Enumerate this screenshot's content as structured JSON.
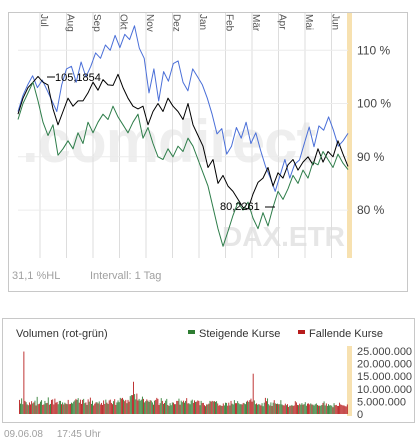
{
  "colors": {
    "upper_band": "#4a6fd8",
    "middle_line": "#000000",
    "lower_band": "#2e7d4a",
    "rising_volume": "#2e7d32",
    "falling_volume": "#b71c1c",
    "axis_highlight": "#f7e1b0",
    "watermark": "#e8e8e8",
    "watermark_accent": "#f8e2b8",
    "muted_text": "#a0a0a0",
    "grid": "#d8d8d8"
  },
  "price_chart": {
    "months": [
      "Jul",
      "Aug",
      "Sep",
      "Okt",
      "Nov",
      "Dez",
      "Jan",
      "Feb",
      "Mär",
      "Apr",
      "Mai",
      "Jun"
    ],
    "y_ticks": [
      "110 %",
      "100 %",
      "90 %",
      "80 %"
    ],
    "y_tick_values": [
      110,
      100,
      90,
      80
    ],
    "y_range": [
      71,
      117
    ],
    "watermark": ".comdirect",
    "source_watermark": "DAX.ETR",
    "annotation_high": "105,1854",
    "annotation_low": "80,2261",
    "footer_left": "31,1 %HL",
    "footer_interval": "Intervall: 1 Tag"
  },
  "volume_chart": {
    "title": "Volumen (rot-grün)",
    "legend": [
      {
        "label": "Steigende Kurse",
        "color": "#2e7d32"
      },
      {
        "label": "Fallende Kurse",
        "color": "#b71c1c"
      }
    ],
    "y_ticks": [
      "25.000.000",
      "20.000.000",
      "15.000.000",
      "10.000.000",
      "5.000.000",
      "0"
    ],
    "y_tick_values": [
      25000000,
      20000000,
      15000000,
      10000000,
      5000000,
      0
    ],
    "y_range": [
      0,
      27000000
    ]
  },
  "timestamp": "09.06.08     17:45 Uhr",
  "chart_data": [
    {
      "type": "line",
      "months": [
        "Jul",
        "Aug",
        "Sep",
        "Okt",
        "Nov",
        "Dez",
        "Jan",
        "Feb",
        "Mär",
        "Apr",
        "Mai",
        "Jun"
      ],
      "series": [
        {
          "values": [
            98.5,
            101.5,
            103.5,
            105.2,
            103.0,
            104.4,
            102.5,
            100.5,
            98.5,
            103.5,
            106.5,
            107.0,
            104.0,
            107.8,
            105.0,
            107.0,
            109.5,
            108.5,
            111.0,
            110.0,
            112.8,
            110.5,
            113.0,
            112.0,
            114.6,
            110.4,
            108.5,
            102.0,
            106.5,
            100.5,
            106.0,
            104.2,
            107.5,
            108.0,
            104.0,
            102.4,
            106.5,
            105.0,
            103.5,
            101.0,
            98.0,
            94.3,
            95.3,
            90.5,
            92.0,
            95.5,
            93.5,
            96.5,
            92.5,
            94.5,
            91.2,
            88.2,
            86.0,
            83.5,
            86.5,
            89.5,
            86.0,
            88.6,
            89.4,
            92.5,
            95.6,
            91.9,
            95.8,
            95.0,
            97.5,
            95.0,
            92.0,
            93.0,
            94.4
          ]
        },
        {
          "values": [
            98.0,
            101.0,
            103.0,
            104.0,
            105.1,
            104.0,
            103.5,
            99.0,
            96.0,
            98.5,
            101.0,
            99.5,
            100.5,
            100.5,
            102.0,
            104.0,
            102.5,
            104.5,
            103.5,
            103.4,
            105.5,
            103.0,
            101.0,
            99.5,
            99.0,
            99.5,
            96.0,
            98.5,
            100.0,
            98.5,
            101.0,
            99.5,
            98.5,
            97.0,
            100.0,
            96.0,
            94.0,
            92.0,
            88.0,
            89.5,
            85.0,
            86.5,
            84.5,
            83.5,
            82.0,
            80.5,
            80.2,
            83.0,
            85.2,
            86.0,
            88.0,
            84.5,
            87.0,
            86.0,
            88.5,
            89.5,
            87.5,
            89.0,
            90.0,
            88.5,
            91.5,
            89.0,
            91.0,
            90.0,
            93.0,
            90.5,
            88.2
          ]
        },
        {
          "values": [
            97.0,
            100.0,
            102.0,
            104.0,
            100.5,
            96.5,
            94.0,
            96.0,
            90.3,
            91.5,
            93.0,
            91.5,
            94.5,
            92.5,
            96.5,
            94.5,
            96.5,
            98.0,
            97.0,
            99.5,
            97.5,
            96.0,
            94.5,
            96.5,
            98.0,
            93.5,
            95.5,
            92.5,
            90.0,
            89.5,
            91.5,
            90.0,
            92.0,
            91.0,
            93.5,
            92.0,
            89.5,
            87.0,
            84.5,
            80.5,
            76.5,
            73.2,
            76.0,
            79.0,
            81.5,
            80.0,
            81.5,
            78.5,
            76.5,
            79.5,
            77.0,
            80.5,
            83.5,
            82.0,
            84.0,
            86.5,
            85.0,
            87.5,
            86.0,
            89.0,
            88.5,
            91.0,
            89.5,
            88.0,
            90.5,
            88.8,
            87.6
          ]
        }
      ]
    },
    {
      "type": "bar",
      "title": "Volumen (rot-grün)",
      "ylim": [
        0,
        27000000
      ],
      "values": [
        5600000,
        4100000,
        6200000,
        3900000,
        24800000,
        5200000,
        4700000,
        3800000,
        3500000,
        4600000,
        3800000,
        5100000,
        4200000,
        4600000,
        5300000,
        3400000,
        6800000,
        3900000,
        4100000,
        4900000,
        5500000,
        3600000,
        3800000,
        5200000,
        4300000,
        4400000,
        6600000,
        3700000,
        4000000,
        5600000,
        5800000,
        3800000,
        6100000,
        4500000,
        4800000,
        3900000,
        5200000,
        5200000,
        3900000,
        4600000,
        3800000,
        4500000,
        4100000,
        3900000,
        5600000,
        3900000,
        4000000,
        4500000,
        4200000,
        4900000,
        5400000,
        6000000,
        5600000,
        6300000,
        4500000,
        5700000,
        4000000,
        5600000,
        6000000,
        4300000,
        4600000,
        3600000,
        5800000,
        4900000,
        6500000,
        4000000,
        5300000,
        3400000,
        4100000,
        4600000,
        4700000,
        4200000,
        5000000,
        3800000,
        4400000,
        3600000,
        5400000,
        4000000,
        5700000,
        4500000,
        4000000,
        5400000,
        5700000,
        4400000,
        3900000,
        5100000,
        5900000,
        3600000,
        4600000,
        5400000,
        4700000,
        6400000,
        6100000,
        6400000,
        5700000,
        5100000,
        5600000,
        4300000,
        5600000,
        4900000,
        7100000,
        7500000,
        7500000,
        12800000,
        7900000,
        5800000,
        8100000,
        5400000,
        6000000,
        5300000,
        5700000,
        6900000,
        6000000,
        4600000,
        5100000,
        5800000,
        5300000,
        4800000,
        5500000,
        5300000,
        4600000,
        3700000,
        5300000,
        5600000,
        6400000,
        6000000,
        3600000,
        4300000,
        6300000,
        5200000,
        4000000,
        4400000,
        5300000,
        6000000,
        3600000,
        3200000,
        4300000,
        3500000,
        4600000,
        4500000,
        3900000,
        3900000,
        5200000,
        5200000,
        6100000,
        3700000,
        5300000,
        4700000,
        5300000,
        4500000,
        5200000,
        6300000,
        4200000,
        4300000,
        3900000,
        5300000,
        5700000,
        4400000,
        5400000,
        4800000,
        4900000,
        5400000,
        5200000,
        3500000,
        5200000,
        4400000,
        4400000,
        3500000,
        3100000,
        3800000,
        3800000,
        4100000,
        5200000,
        4900000,
        5200000,
        5000000,
        5100000,
        4800000,
        5100000,
        4200000,
        3300000,
        3600000,
        3300000,
        3200000,
        4200000,
        3400000,
        4500000,
        4400000,
        3300000,
        4500000,
        3400000,
        5200000,
        4100000,
        3800000,
        5500000,
        4300000,
        4300000,
        5100000,
        4300000,
        3900000,
        3900000,
        3800000,
        4400000,
        4200000,
        3900000,
        4900000,
        5300000,
        4800000,
        5500000,
        6100000,
        4900000,
        16000000,
        5400000,
        3900000,
        4200000,
        3700000,
        3900000,
        3800000,
        3400000,
        4300000,
        3100000,
        4500000,
        6400000,
        5100000,
        6200000,
        3900000,
        3400000,
        4600000,
        3200000,
        4500000,
        5500000,
        4200000,
        4000000,
        4100000,
        3900000,
        3900000,
        5500000,
        3800000,
        3500000,
        3400000,
        4100000,
        3500000,
        3900000,
        2800000,
        3300000,
        3300000,
        3600000,
        3200000,
        3400000,
        5100000,
        4600000,
        3600000,
        3500000,
        4100000,
        3700000,
        4300000,
        3700000,
        3900000,
        4700000,
        3300000,
        4100000,
        4200000,
        3800000,
        4200000,
        3800000,
        3700000,
        3400000,
        3900000,
        4200000,
        3600000,
        3300000,
        3300000,
        3300000,
        3600000,
        4400000,
        5000000,
        3400000,
        4200000,
        3200000,
        3900000,
        3400000,
        3500000,
        3300000,
        2700000,
        4300000,
        3500000,
        3600000,
        3200000,
        3200000,
        4500000,
        3800000,
        3600000,
        3400000,
        3400000,
        3100000,
        3000000,
        3800000
      ],
      "directions": [
        "down",
        "up",
        "up",
        "up",
        "down",
        "down",
        "up",
        "down",
        "up",
        "down",
        "down",
        "down",
        "up",
        "down",
        "up",
        "down",
        "up",
        "down",
        "down",
        "up",
        "up",
        "down",
        "down",
        "up",
        "up",
        "down",
        "up",
        "down",
        "up",
        "down",
        "down",
        "down",
        "down",
        "down",
        "down",
        "up",
        "up",
        "up",
        "down",
        "up",
        "down",
        "up",
        "down",
        "up",
        "down",
        "down",
        "down",
        "up",
        "up",
        "up",
        "up",
        "down",
        "up",
        "up",
        "down",
        "down",
        "down",
        "down",
        "up",
        "up",
        "down",
        "up",
        "down",
        "up",
        "down",
        "up",
        "up",
        "down",
        "down",
        "down",
        "up",
        "down",
        "up",
        "down",
        "down",
        "down",
        "down",
        "down",
        "up",
        "down",
        "up",
        "down",
        "down",
        "down",
        "down",
        "up",
        "down",
        "down",
        "up",
        "up",
        "up",
        "up",
        "down",
        "down",
        "up",
        "down",
        "down",
        "up",
        "down",
        "down",
        "up",
        "up",
        "down",
        "down",
        "up",
        "up",
        "down",
        "down",
        "up",
        "up",
        "up",
        "up",
        "down",
        "up",
        "up",
        "down",
        "up",
        "up",
        "down",
        "up",
        "up",
        "down",
        "up",
        "down",
        "down",
        "down",
        "down",
        "up",
        "up",
        "down",
        "up",
        "down",
        "up",
        "up",
        "down",
        "up",
        "up",
        "up",
        "up",
        "down",
        "down",
        "up",
        "down",
        "down",
        "up",
        "down",
        "up",
        "up",
        "down",
        "up",
        "up",
        "down",
        "down",
        "up",
        "up",
        "up",
        "up",
        "down",
        "down",
        "up",
        "down",
        "down",
        "down",
        "up",
        "up",
        "down",
        "down",
        "down",
        "up",
        "down",
        "up",
        "down",
        "up",
        "down",
        "down",
        "up",
        "down",
        "up",
        "up",
        "down",
        "down",
        "down",
        "up",
        "down",
        "down",
        "up",
        "up",
        "up",
        "down",
        "down",
        "up",
        "down",
        "up",
        "up",
        "up",
        "down",
        "down",
        "up",
        "up",
        "up",
        "up",
        "down",
        "down",
        "up",
        "up",
        "up",
        "down",
        "up",
        "down",
        "down",
        "down",
        "down",
        "up",
        "up",
        "down",
        "up",
        "up",
        "down",
        "down",
        "up",
        "up",
        "up",
        "down",
        "down",
        "up",
        "up",
        "down",
        "up",
        "down",
        "up",
        "down",
        "up",
        "down",
        "up",
        "down",
        "up",
        "up",
        "up",
        "down",
        "down",
        "down",
        "up",
        "down",
        "down",
        "up",
        "down",
        "up",
        "down",
        "down",
        "down",
        "down",
        "down",
        "up",
        "down",
        "up",
        "up",
        "down",
        "up",
        "up",
        "up",
        "down",
        "down",
        "down",
        "up",
        "down",
        "up",
        "up",
        "up",
        "up",
        "down",
        "up",
        "down",
        "up",
        "up",
        "down",
        "up",
        "up",
        "down",
        "up",
        "up",
        "up",
        "up",
        "up",
        "down",
        "up",
        "down",
        "down",
        "down"
      ]
    }
  ]
}
